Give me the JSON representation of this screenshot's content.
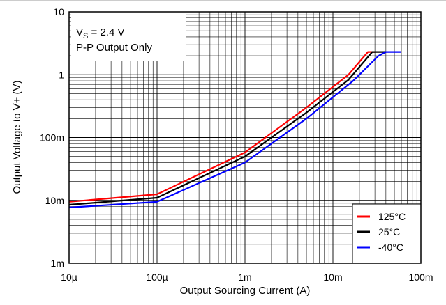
{
  "chart_data": {
    "type": "line",
    "xscale": "log",
    "yscale": "log",
    "xlabel": "Output Sourcing Current (A)",
    "ylabel": "Output Voltage to V+ (V)",
    "xlim": [
      1e-05,
      0.1
    ],
    "ylim": [
      0.001,
      10
    ],
    "xticks": [
      {
        "value": 1e-05,
        "label": "10µ"
      },
      {
        "value": 0.0001,
        "label": "100µ"
      },
      {
        "value": 0.001,
        "label": "1m"
      },
      {
        "value": 0.01,
        "label": "10m"
      },
      {
        "value": 0.1,
        "label": "100m"
      }
    ],
    "yticks": [
      {
        "value": 0.001,
        "label": "1m"
      },
      {
        "value": 0.01,
        "label": "10m"
      },
      {
        "value": 0.1,
        "label": "100m"
      },
      {
        "value": 1,
        "label": "1"
      },
      {
        "value": 10,
        "label": "10"
      }
    ],
    "grid": true,
    "annotation": {
      "line1_main": "V",
      "line1_sub": "S",
      "line1_rest": " = 2.4 V",
      "line2": "P-P Output Only"
    },
    "legend_position": "bottom-right",
    "series": [
      {
        "name": "125°C",
        "color": "#ff0000",
        "points": [
          [
            1e-05,
            0.0095
          ],
          [
            0.0001,
            0.0125
          ],
          [
            0.001,
            0.058
          ],
          [
            0.005,
            0.3
          ],
          [
            0.015,
            1.0
          ],
          [
            0.025,
            2.3
          ],
          [
            0.03,
            2.3
          ]
        ]
      },
      {
        "name": "25°C",
        "color": "#000000",
        "points": [
          [
            1e-05,
            0.0085
          ],
          [
            0.0001,
            0.011
          ],
          [
            0.001,
            0.05
          ],
          [
            0.005,
            0.25
          ],
          [
            0.015,
            0.83
          ],
          [
            0.028,
            2.3
          ],
          [
            0.04,
            2.3
          ]
        ]
      },
      {
        "name": "-40°C",
        "color": "#0000ff",
        "points": [
          [
            1e-05,
            0.0077
          ],
          [
            0.0001,
            0.0095
          ],
          [
            0.001,
            0.04
          ],
          [
            0.005,
            0.2
          ],
          [
            0.017,
            0.8
          ],
          [
            0.033,
            2.0
          ],
          [
            0.04,
            2.3
          ],
          [
            0.06,
            2.3
          ]
        ]
      }
    ]
  }
}
